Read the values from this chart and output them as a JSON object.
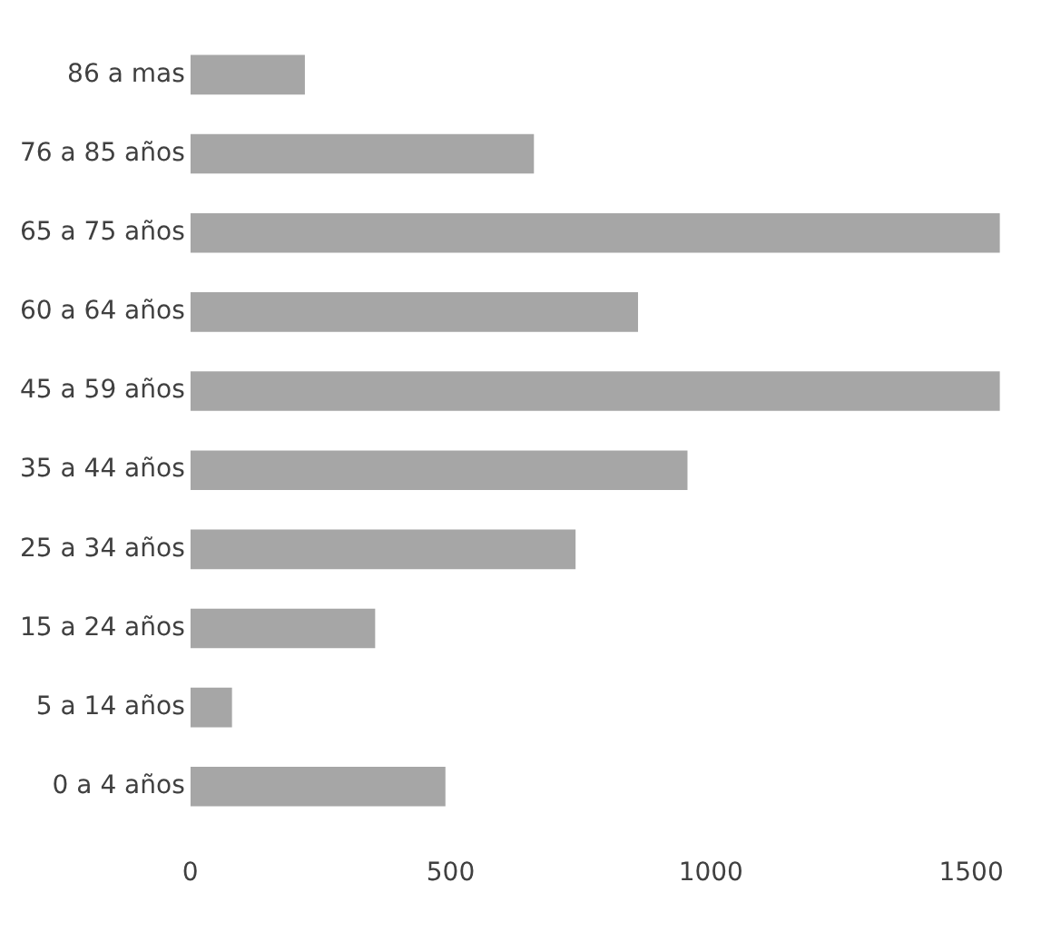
{
  "chart_data": {
    "type": "bar",
    "orientation": "horizontal",
    "categories": [
      "86 a mas",
      "76 a 85 años",
      "65 a 75 años",
      "60 a 64 años",
      "45 a 59 años",
      "35 a 44 años",
      "25 a 34 años",
      "15 a 24 años",
      "5 a 14 años",
      "0 a 4 años"
    ],
    "values": [
      220,
      660,
      1555,
      860,
      1555,
      955,
      740,
      355,
      80,
      490
    ],
    "color": "#a6a6a6",
    "xlim": [
      0,
      1560
    ],
    "xticks": [
      0,
      500,
      1000,
      1500
    ],
    "grid": false,
    "legend": false
  }
}
